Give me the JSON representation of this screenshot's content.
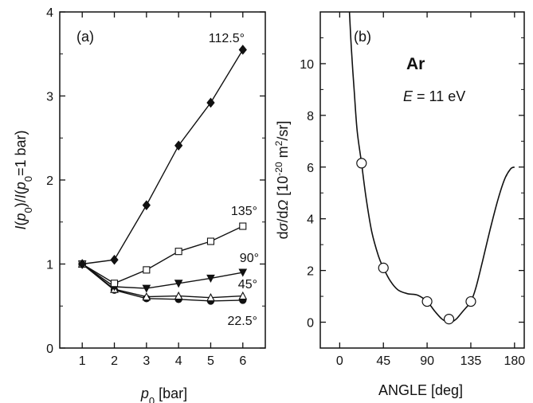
{
  "chart_data": [
    {
      "type": "line",
      "panel": "(a)",
      "xlabel": "p0 [bar]",
      "ylabel": "I(p0)/I(p0=1 bar)",
      "xlim": [
        0.3,
        6.7
      ],
      "ylim": [
        0,
        4
      ],
      "xticks": [
        1,
        2,
        3,
        4,
        5,
        6
      ],
      "yticks": [
        0,
        1,
        2,
        3,
        4
      ],
      "x": [
        1,
        2,
        3,
        4,
        5,
        6
      ],
      "series": [
        {
          "name": "112.5°",
          "marker": "filled-diamond",
          "values": [
            1.0,
            1.05,
            1.7,
            2.41,
            2.92,
            3.55
          ]
        },
        {
          "name": "135°",
          "marker": "open-square",
          "values": [
            1.0,
            0.77,
            0.93,
            1.15,
            1.27,
            1.45
          ]
        },
        {
          "name": "90°",
          "marker": "filled-triangle-down",
          "values": [
            1.0,
            0.73,
            0.71,
            0.77,
            0.83,
            0.9
          ]
        },
        {
          "name": "45°",
          "marker": "open-triangle-up",
          "values": [
            1.0,
            0.7,
            0.61,
            0.62,
            0.6,
            0.62
          ]
        },
        {
          "name": "22.5°",
          "marker": "filled-circle",
          "values": [
            1.0,
            0.69,
            0.59,
            0.58,
            0.56,
            0.57
          ]
        }
      ]
    },
    {
      "type": "line",
      "panel": "(b)",
      "xlabel": "ANGLE [deg]",
      "ylabel": "dσ/dΩ [10^-20 m^2/sr]",
      "annotation_ar": "Ar",
      "annotation_energy": "E = 11 eV",
      "xlim": [
        -20,
        190
      ],
      "ylim": [
        -1,
        12
      ],
      "xticks": [
        0,
        45,
        90,
        135,
        180
      ],
      "yticks": [
        0,
        2,
        4,
        6,
        8,
        10
      ],
      "curve": {
        "x": [
          10,
          12,
          15,
          18,
          22.5,
          27,
          33,
          40,
          45,
          52,
          60,
          70,
          80,
          90,
          98,
          105,
          110,
          113,
          116,
          120,
          125,
          130,
          135,
          140,
          147,
          155,
          163,
          170,
          176,
          180
        ],
        "y": [
          12.0,
          10.6,
          8.9,
          7.4,
          6.15,
          4.85,
          3.5,
          2.55,
          2.1,
          1.6,
          1.25,
          1.1,
          1.05,
          0.8,
          0.42,
          0.13,
          0.02,
          0.0,
          0.02,
          0.12,
          0.34,
          0.56,
          0.8,
          1.3,
          2.35,
          3.6,
          4.75,
          5.55,
          5.93,
          6.0
        ]
      },
      "points": {
        "x": [
          22.5,
          45,
          90,
          112.5,
          135
        ],
        "y": [
          6.15,
          2.1,
          0.8,
          0.12,
          0.8
        ]
      }
    }
  ],
  "text": {
    "panel_a_tag": "(a)",
    "panel_b_tag": "(b)",
    "ar": "Ar",
    "energy_value": " = 11 eV",
    "energy_symbol": "E",
    "xlabel_b": "ANGLE [deg]",
    "label_112": "112.5°",
    "label_135": "135°",
    "label_90": "90°",
    "label_45": "45°",
    "label_22": "22.5°"
  }
}
